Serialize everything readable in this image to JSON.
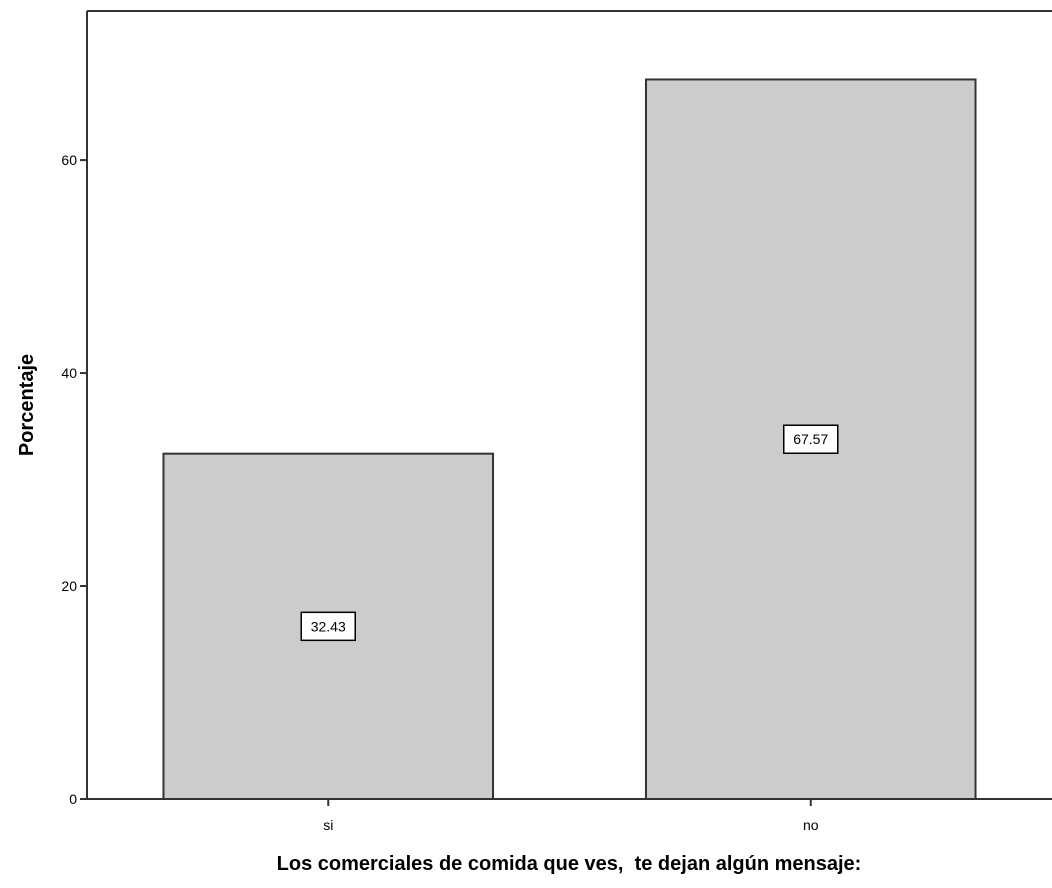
{
  "chart_data": {
    "type": "bar",
    "title": "",
    "xlabel": "Los comerciales de comida que ves,  te dejan algún mensaje:",
    "ylabel": "Porcentaje",
    "categories": [
      "si",
      "no"
    ],
    "values": [
      32.43,
      67.57
    ],
    "value_labels": [
      "32.43",
      "67.57"
    ],
    "yticks": [
      0,
      20,
      40,
      60
    ],
    "ylim": [
      0,
      74
    ],
    "grid": false,
    "legend": "none",
    "colors": {
      "bar_fill": "#cccccc",
      "bar_stroke": "#333333",
      "axis": "#333333",
      "label_box_fill": "#ffffff",
      "label_box_stroke": "#000000"
    }
  }
}
